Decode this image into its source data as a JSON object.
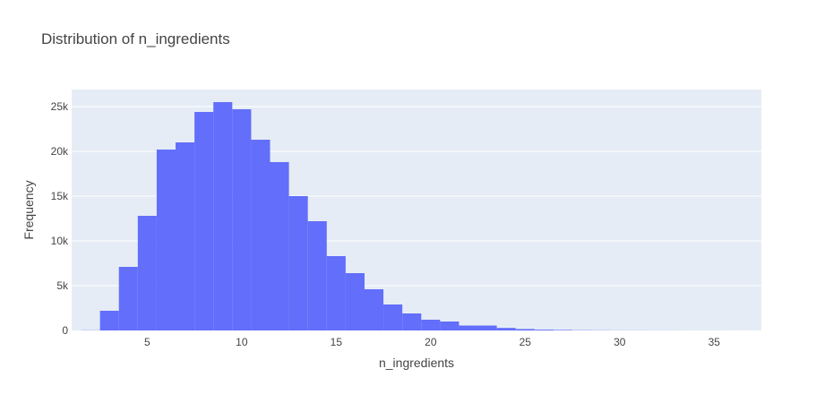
{
  "chart_data": {
    "type": "bar",
    "title": "Distribution of n_ingredients",
    "xlabel": "n_ingredients",
    "ylabel": "Frequency",
    "xlim": [
      1,
      37.5
    ],
    "ylim": [
      0,
      26900
    ],
    "grid": true,
    "bin_width": 1,
    "x_ticks": [
      5,
      10,
      15,
      20,
      25,
      30,
      35
    ],
    "y_ticks": [
      {
        "value": 0,
        "label": "0"
      },
      {
        "value": 5000,
        "label": "5k"
      },
      {
        "value": 10000,
        "label": "10k"
      },
      {
        "value": 15000,
        "label": "15k"
      },
      {
        "value": 20000,
        "label": "20k"
      },
      {
        "value": 25000,
        "label": "25k"
      }
    ],
    "x": [
      1,
      2,
      3,
      4,
      5,
      6,
      7,
      8,
      9,
      10,
      11,
      12,
      13,
      14,
      15,
      16,
      17,
      18,
      19,
      20,
      21,
      22,
      23,
      24,
      25,
      26,
      27,
      28,
      29,
      30,
      31,
      32,
      33,
      34,
      35,
      36
    ],
    "values": [
      20,
      2200,
      7100,
      12800,
      20200,
      21000,
      24400,
      25500,
      24700,
      21300,
      18800,
      15000,
      12200,
      8300,
      6400,
      4600,
      2900,
      1900,
      1200,
      1000,
      550,
      550,
      280,
      160,
      90,
      60,
      30,
      20,
      10,
      8,
      5,
      3,
      2,
      2,
      1,
      1
    ]
  },
  "colors": {
    "bar": "#636efa",
    "plot_bg": "#e5ecf6",
    "grid": "#ffffff",
    "text": "#444444"
  }
}
